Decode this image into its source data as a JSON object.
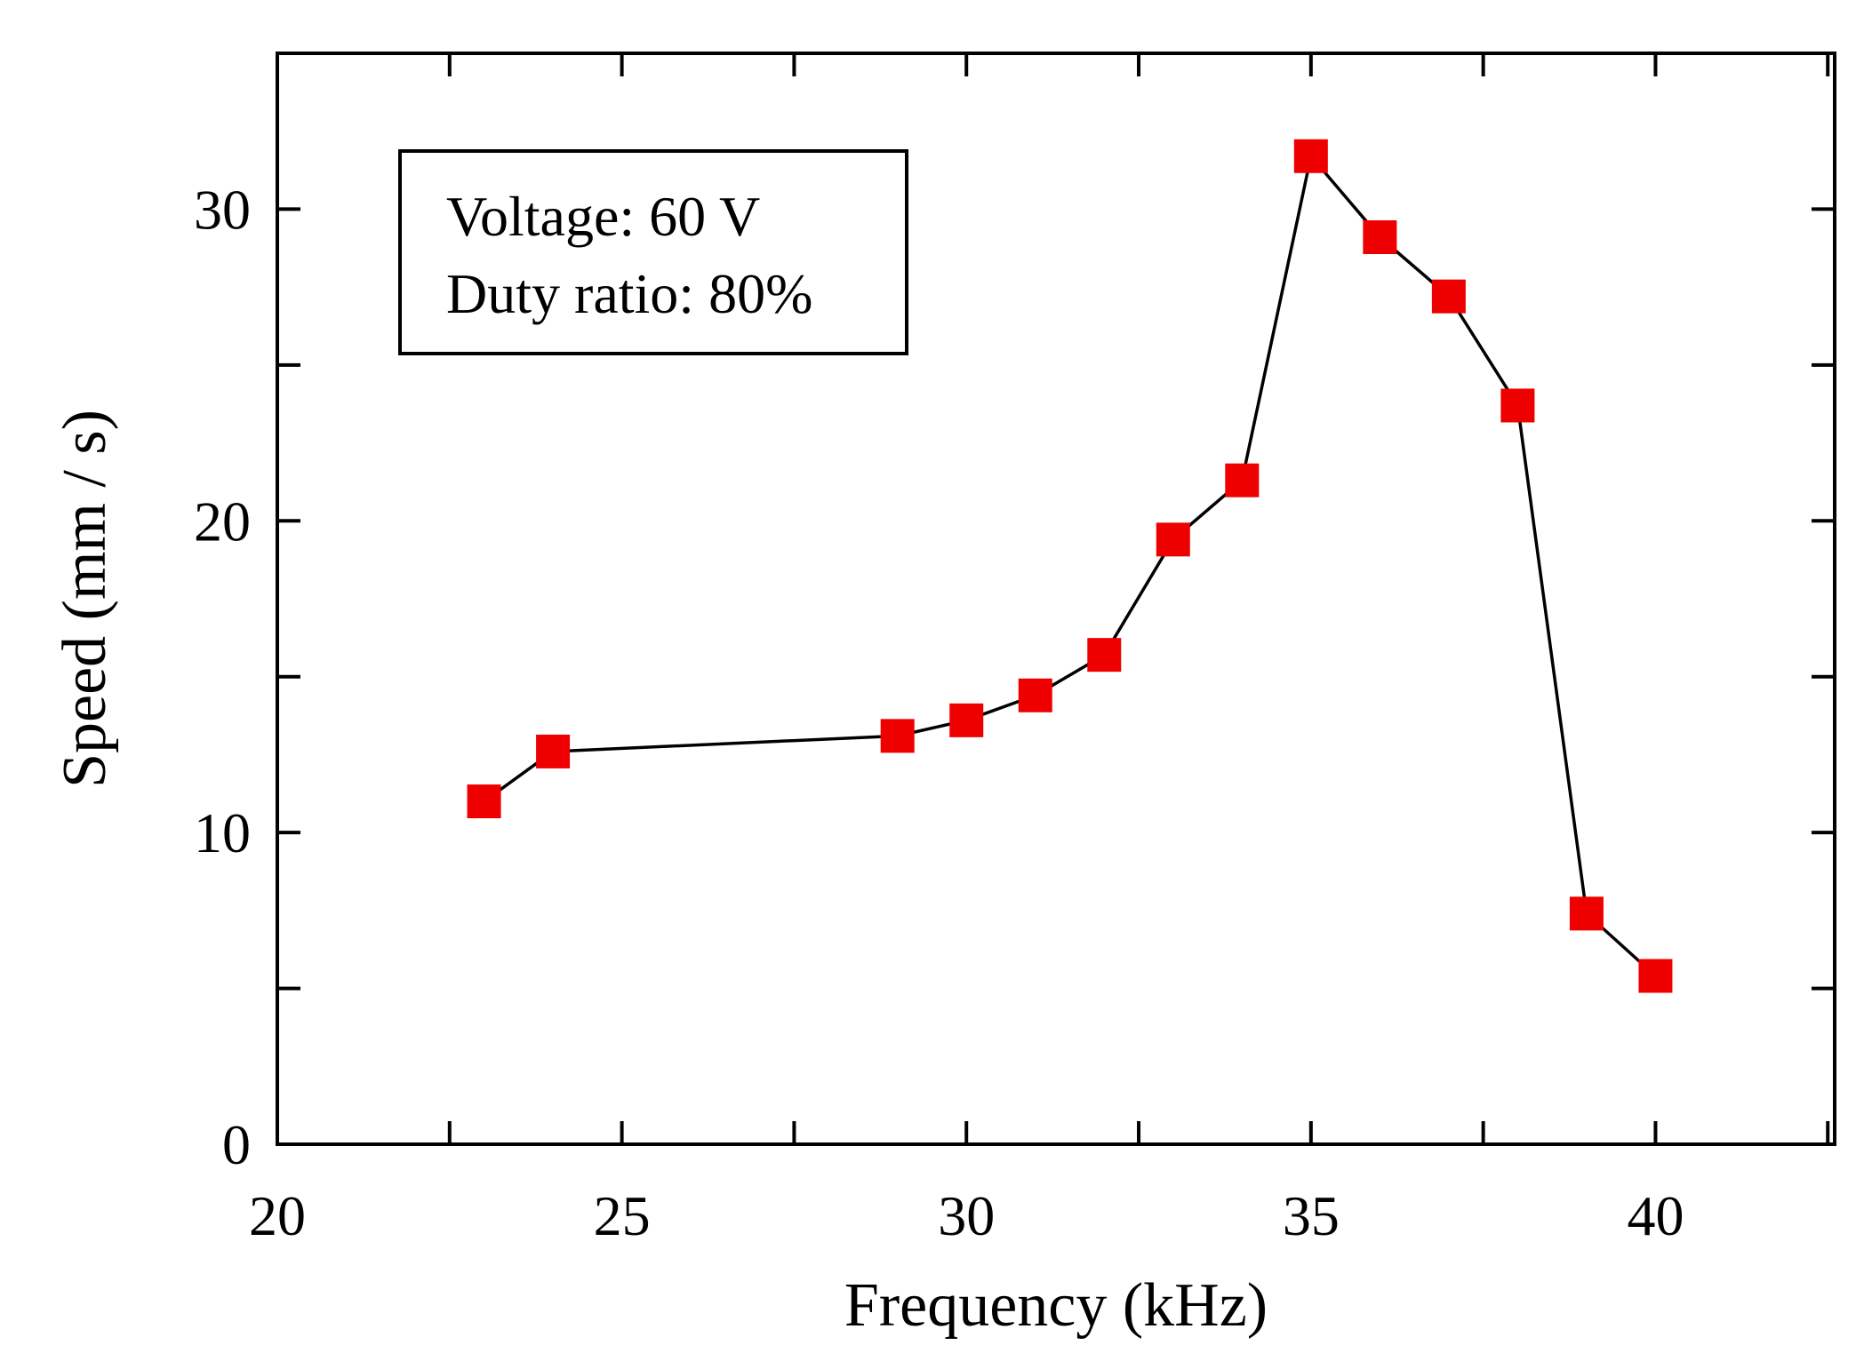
{
  "chart_data": {
    "type": "line",
    "xlabel": "Frequency (kHz)",
    "ylabel": "Speed (mm / s)",
    "xlim": [
      20,
      42.6
    ],
    "ylim": [
      0,
      35
    ],
    "x_ticks": [
      20,
      25,
      30,
      35,
      40
    ],
    "x_tick_labels": [
      "20",
      "25",
      "30",
      "35",
      "40"
    ],
    "x_minor_step": 2.5,
    "y_ticks": [
      0,
      10,
      20,
      30
    ],
    "y_tick_labels": [
      "0",
      "10",
      "20",
      "30"
    ],
    "y_minor_step": 5,
    "grid": false,
    "legend_position": "top-left",
    "annotations": [
      "Voltage: 60 V",
      "Duty ratio: 80%"
    ],
    "series": [
      {
        "marker": "square",
        "marker_color": "#ee0000",
        "line_color": "#000000",
        "x": [
          23,
          24,
          29,
          30,
          31,
          32,
          33,
          34,
          35,
          36,
          37,
          38,
          39,
          40
        ],
        "y": [
          11.0,
          12.6,
          13.1,
          13.6,
          14.4,
          15.7,
          19.4,
          21.3,
          31.7,
          29.1,
          27.2,
          23.7,
          7.4,
          5.4
        ]
      }
    ]
  }
}
